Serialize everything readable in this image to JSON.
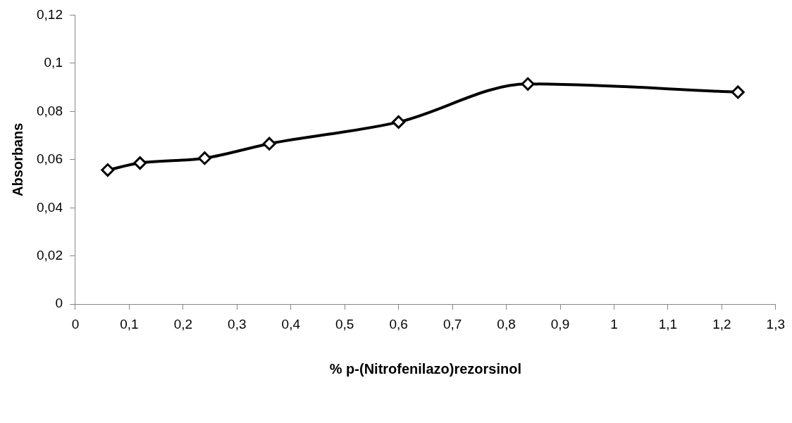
{
  "chart_data": {
    "type": "line",
    "xlabel": "% p-(Nitrofenilazo)rezorsinol",
    "ylabel": "Absorbans",
    "x": [
      0.06,
      0.12,
      0.24,
      0.36,
      0.6,
      0.84,
      1.23
    ],
    "series": [
      {
        "color": "#000000",
        "values": [
          0.0557,
          0.0586,
          0.0606,
          0.0666,
          0.0756,
          0.0914,
          0.088
        ]
      }
    ],
    "xlim": [
      0,
      1.3
    ],
    "xticks": [
      0,
      {
        "value": 0.1,
        "label": "0,1"
      },
      {
        "value": 0.2,
        "label": "0,2"
      },
      {
        "value": 0.3,
        "label": "0,3"
      },
      {
        "value": 0.4,
        "label": "0,4"
      },
      {
        "value": 0.5,
        "label": "0,5"
      },
      {
        "value": 0.6,
        "label": "0,6"
      },
      {
        "value": 0.7,
        "label": "0,7"
      },
      {
        "value": 0.8,
        "label": "0,8"
      },
      {
        "value": 0.9,
        "label": "0,9"
      },
      1,
      {
        "value": 1.1,
        "label": "1,1"
      },
      {
        "value": 1.2,
        "label": "1,2"
      },
      {
        "value": 1.3,
        "label": "1,3"
      }
    ],
    "ylim": [
      0,
      0.12
    ],
    "yticks": [
      0,
      {
        "value": 0.02,
        "label": "0,02"
      },
      {
        "value": 0.04,
        "label": "0,04"
      },
      {
        "value": 0.06,
        "label": "0,06"
      },
      {
        "value": 0.08,
        "label": "0,08"
      },
      {
        "value": 0.1,
        "label": "0,1"
      },
      {
        "value": 0.12,
        "label": "0,12"
      }
    ],
    "grid": false,
    "legend": false,
    "marker": "diamond",
    "line_style": "solid"
  }
}
